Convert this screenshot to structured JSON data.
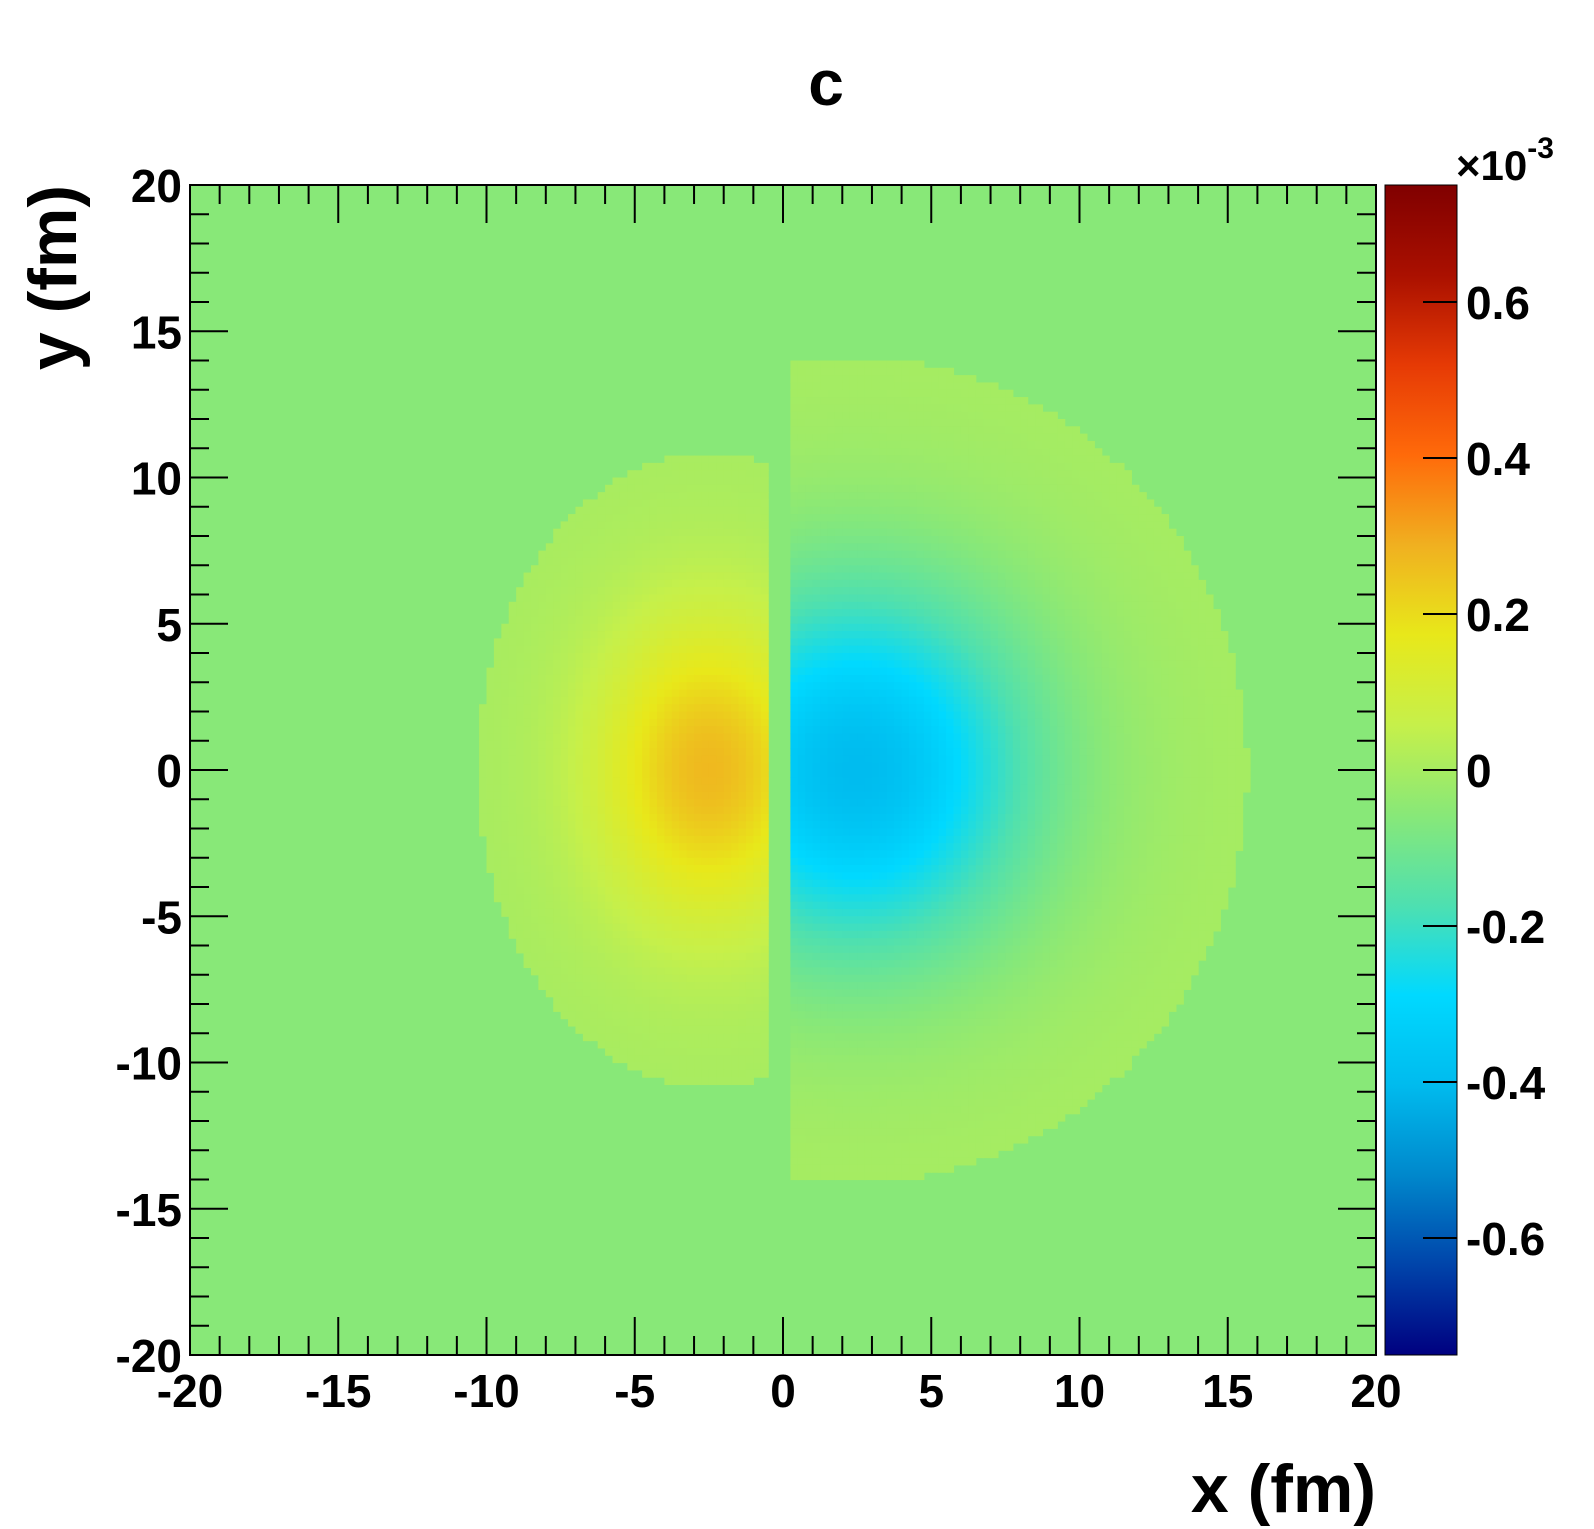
{
  "chart_data": {
    "type": "heatmap",
    "title": "c",
    "xlabel": "x (fm)",
    "ylabel": "y (fm)",
    "xlim": [
      -20,
      20
    ],
    "ylim": [
      -20,
      20
    ],
    "x_ticks": [
      -20,
      -15,
      -10,
      -5,
      0,
      5,
      10,
      15,
      20
    ],
    "x_tick_labels": [
      "-20",
      "-15",
      "-10",
      "-5",
      "0",
      "5",
      "10",
      "15",
      "20"
    ],
    "y_ticks": [
      -20,
      -15,
      -10,
      -5,
      0,
      5,
      10,
      15,
      20
    ],
    "y_tick_labels": [
      "-20",
      "-15",
      "-10",
      "-5",
      "0",
      "5",
      "10",
      "15",
      "20"
    ],
    "colorbar": {
      "multiplier": "×10",
      "exponent": "-3",
      "range": [
        -0.75,
        0.75
      ],
      "ticks": [
        -0.6,
        -0.4,
        -0.2,
        0,
        0.2,
        0.4,
        0.6
      ],
      "tick_labels": [
        "-0.6",
        "-0.4",
        "-0.2",
        "0",
        "0.2",
        "0.4",
        "0.6"
      ],
      "palette": [
        "#000080",
        "#0044aa",
        "#0088cc",
        "#00bbee",
        "#00d9ff",
        "#4ee0b0",
        "#88e878",
        "#c6f04a",
        "#e8e81a",
        "#f0b020",
        "#ff6a0a",
        "#e63a05",
        "#aa1000",
        "#800000"
      ]
    },
    "lobes": [
      {
        "name": "",
        "cx": -2.5,
        "cy": 0,
        "sx": 2.6,
        "sy": 3.6,
        "peak": 0.27,
        "side": "negative-x"
      },
      {
        "name": "",
        "cx": 2.5,
        "cy": 0,
        "sx": 4.2,
        "sy": 4.5,
        "peak": -0.4,
        "side": "positive-x"
      }
    ],
    "grid": false,
    "background_value": 0
  }
}
